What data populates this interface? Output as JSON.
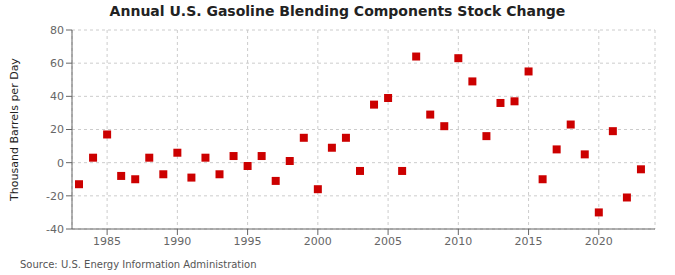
{
  "chart_data": {
    "type": "scatter",
    "title": "Annual U.S. Gasoline Blending Components Stock Change",
    "ylabel": "Thousand Barrels per Day",
    "annotations": [
      "Source: U.S. Energy Information Administration"
    ],
    "x": [
      1983,
      1984,
      1985,
      1986,
      1987,
      1988,
      1989,
      1990,
      1991,
      1992,
      1993,
      1994,
      1995,
      1996,
      1997,
      1998,
      1999,
      2000,
      2001,
      2002,
      2003,
      2004,
      2005,
      2006,
      2007,
      2008,
      2009,
      2010,
      2011,
      2012,
      2013,
      2014,
      2015,
      2016,
      2017,
      2018,
      2019,
      2020,
      2021,
      2022,
      2023
    ],
    "values": [
      -13,
      3,
      17,
      -8,
      -10,
      3,
      -7,
      6,
      -9,
      3,
      -7,
      4,
      -2,
      4,
      -11,
      1,
      15,
      -16,
      9,
      15,
      -5,
      35,
      39,
      -5,
      64,
      29,
      22,
      63,
      49,
      16,
      36,
      37,
      55,
      -10,
      8,
      23,
      5,
      -30,
      19,
      -21,
      -4
    ],
    "color": "#cc0000",
    "marker": "square",
    "xlim": [
      1982.5,
      2024
    ],
    "ylim": [
      -40,
      80
    ],
    "xticks": [
      1985,
      1990,
      1995,
      2000,
      2005,
      2010,
      2015,
      2020
    ],
    "yticks": [
      -40,
      -20,
      0,
      20,
      40,
      60,
      80
    ],
    "grid": true
  }
}
